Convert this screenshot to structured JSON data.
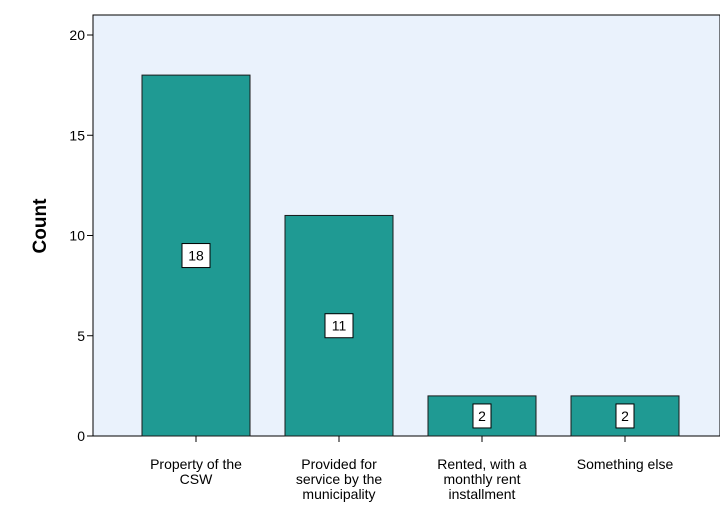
{
  "chart_data": {
    "type": "bar",
    "categories": [
      [
        "Property of the",
        "CSW"
      ],
      [
        "Provided for",
        "service by the",
        "municipality"
      ],
      [
        "Rented, with a",
        "monthly rent",
        "installment"
      ],
      [
        "Something else"
      ]
    ],
    "values": [
      18,
      11,
      2,
      2
    ],
    "data_labels": [
      "18",
      "11",
      "2",
      "2"
    ],
    "title": "",
    "xlabel": "",
    "ylabel": "Count",
    "ylim": [
      0,
      20
    ],
    "yticks": [
      0,
      5,
      10,
      15,
      20
    ],
    "grid": false,
    "colors": {
      "plot_background": "#EAF2FC",
      "bar_fill": "#1F9A93",
      "bar_stroke": "#1A1A1A"
    }
  }
}
